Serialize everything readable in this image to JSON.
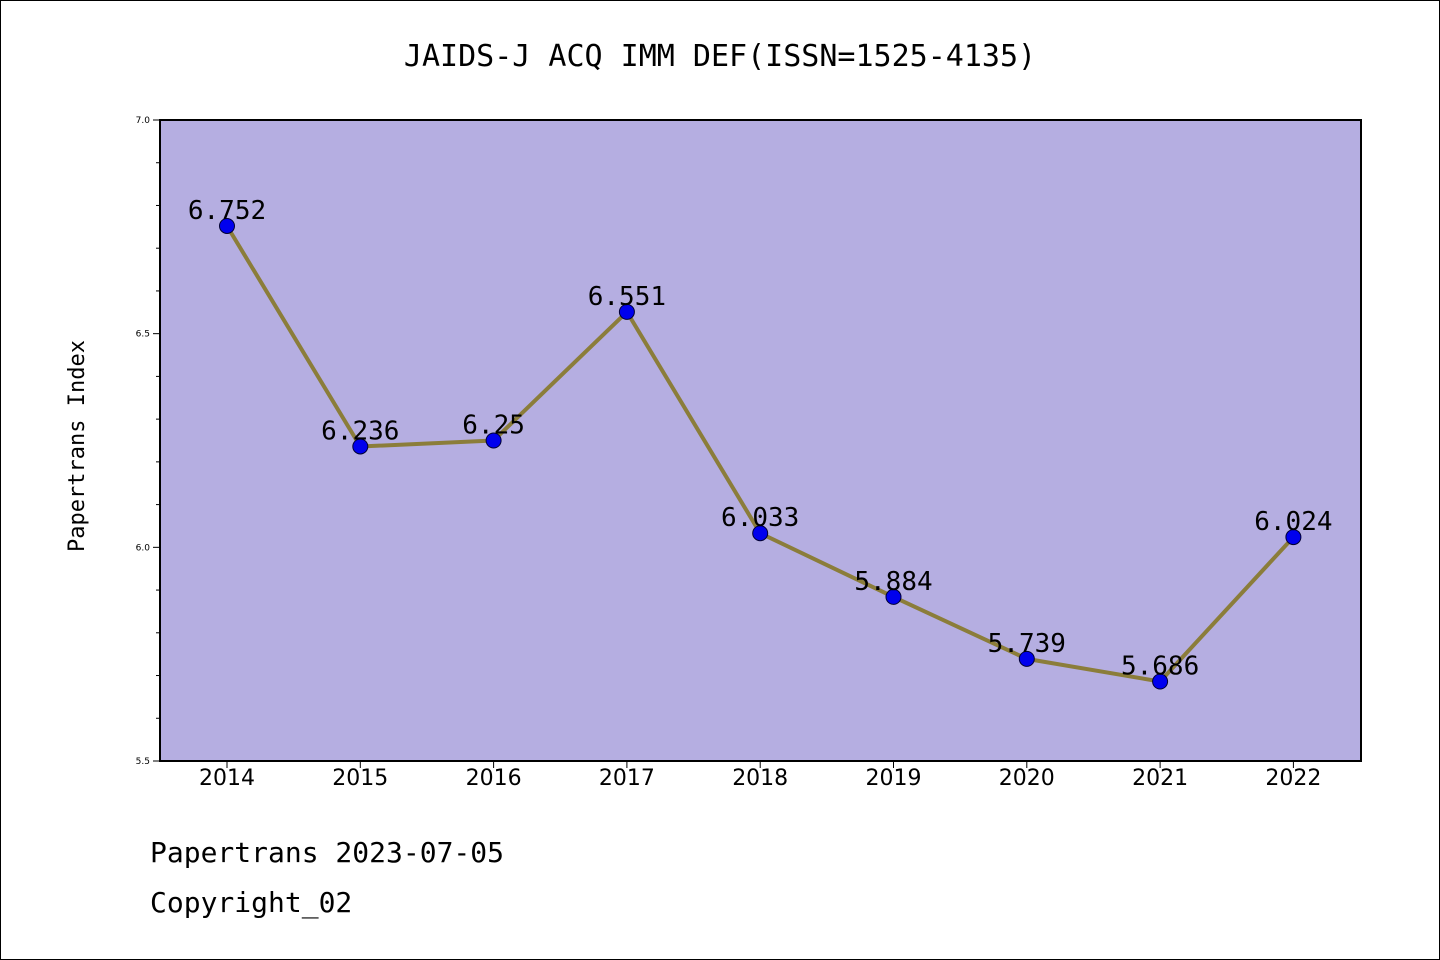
{
  "chart_data": {
    "type": "line",
    "title": "JAIDS-J ACQ IMM DEF(ISSN=1525-4135)",
    "xlabel": "",
    "ylabel": "Papertrans Index",
    "categories": [
      "2014",
      "2015",
      "2016",
      "2017",
      "2018",
      "2019",
      "2020",
      "2021",
      "2022"
    ],
    "series": [
      {
        "values": [
          6.752,
          6.236,
          6.25,
          6.551,
          6.033,
          5.884,
          5.739,
          5.686,
          6.024
        ],
        "labels": [
          "6.752",
          "6.236",
          "6.25",
          "6.551",
          "6.033",
          "5.884",
          "5.739",
          "5.686",
          "6.024"
        ]
      }
    ],
    "ylim": [
      5.5,
      7.0
    ],
    "yticks": [
      "5.5",
      "6.0",
      "6.5",
      "7.0"
    ],
    "grid": false,
    "legend": "none",
    "colors": {
      "plot_background": "#b5aee1",
      "line": "#8b7d3a",
      "marker": "#0000ee"
    }
  },
  "footer": {
    "line1": "Papertrans 2023-07-05",
    "line2": "Copyright_02"
  }
}
